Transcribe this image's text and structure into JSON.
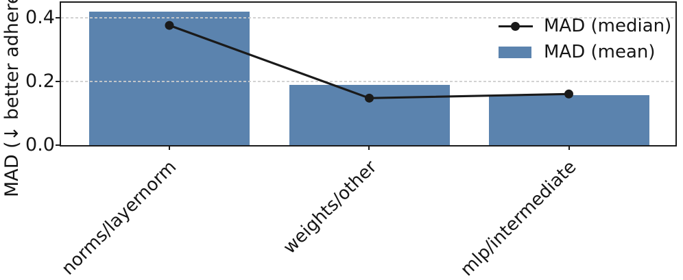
{
  "chart_data": {
    "type": "bar",
    "title": "",
    "xlabel": "",
    "ylabel": "MAD (↓ better adhere",
    "categories": [
      "norms/layernorm",
      "weights/other",
      "mlp/intermediate"
    ],
    "series": [
      {
        "name": "MAD (median)",
        "type": "line",
        "marker": "circle",
        "color": "#1a1a1a",
        "values": [
          0.377,
          0.148,
          0.161
        ]
      },
      {
        "name": "MAD (mean)",
        "type": "bar",
        "color": "#5b83ae",
        "values": [
          0.42,
          0.19,
          0.158
        ]
      }
    ],
    "yticks": [
      0.0,
      0.2,
      0.4
    ],
    "ytick_labels": [
      "0.0",
      "0.2",
      "0.4"
    ],
    "ylim": [
      0,
      0.45
    ],
    "grid": {
      "axis": "y",
      "style": "dashed",
      "color": "#cdcdcd"
    },
    "legend_position": "upper right",
    "x_label_rotation": 45
  }
}
